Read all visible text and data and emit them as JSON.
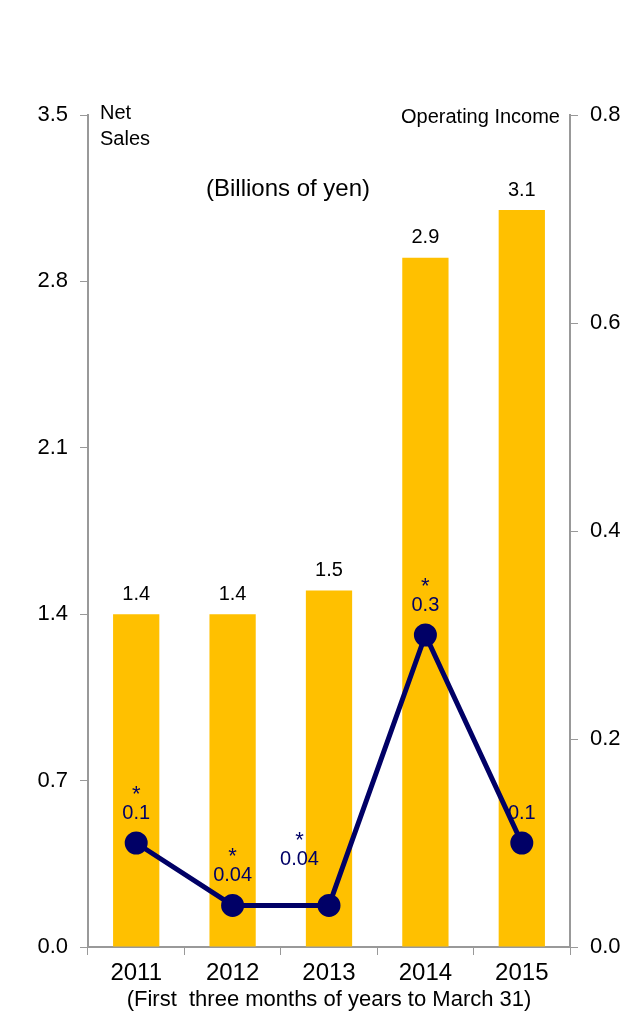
{
  "chart_data": {
    "type": "bar",
    "subtitle": "(Billions of yen)",
    "ylabel": "Net Sales",
    "y2label": "Operating Income",
    "xlabel": "(First  three months of years to March 31)",
    "categories": [
      "2011",
      "2012",
      "2013",
      "2014",
      "2015"
    ],
    "series": [
      {
        "color": "#ffc000",
        "values": [
          1.4,
          1.4,
          1.5,
          2.9,
          3.1
        ]
      },
      {
        "type": "line",
        "axis": "y2",
        "color": "#000066",
        "values": [
          0.1,
          0.04,
          0.04,
          0.3,
          0.1
        ],
        "value_labels": [
          "0.1",
          "0.04",
          "0.04",
          "0.3",
          "0.1"
        ],
        "marker": "circle",
        "line_style": "solid"
      }
    ],
    "data_labels": true,
    "annotations": [
      "*",
      "*",
      "*",
      "*"
    ],
    "ylim": [
      0,
      3.5
    ],
    "yticks": [
      {
        "value": 0,
        "label": "0.0"
      },
      0.7,
      1.4,
      2.1,
      2.8,
      3.5
    ],
    "y2lim": [
      0,
      0.8
    ],
    "y2ticks": [
      {
        "value": 0,
        "label": "0.0"
      },
      0.2,
      0.4,
      0.6,
      0.8
    ],
    "grid": false,
    "legend": false
  }
}
